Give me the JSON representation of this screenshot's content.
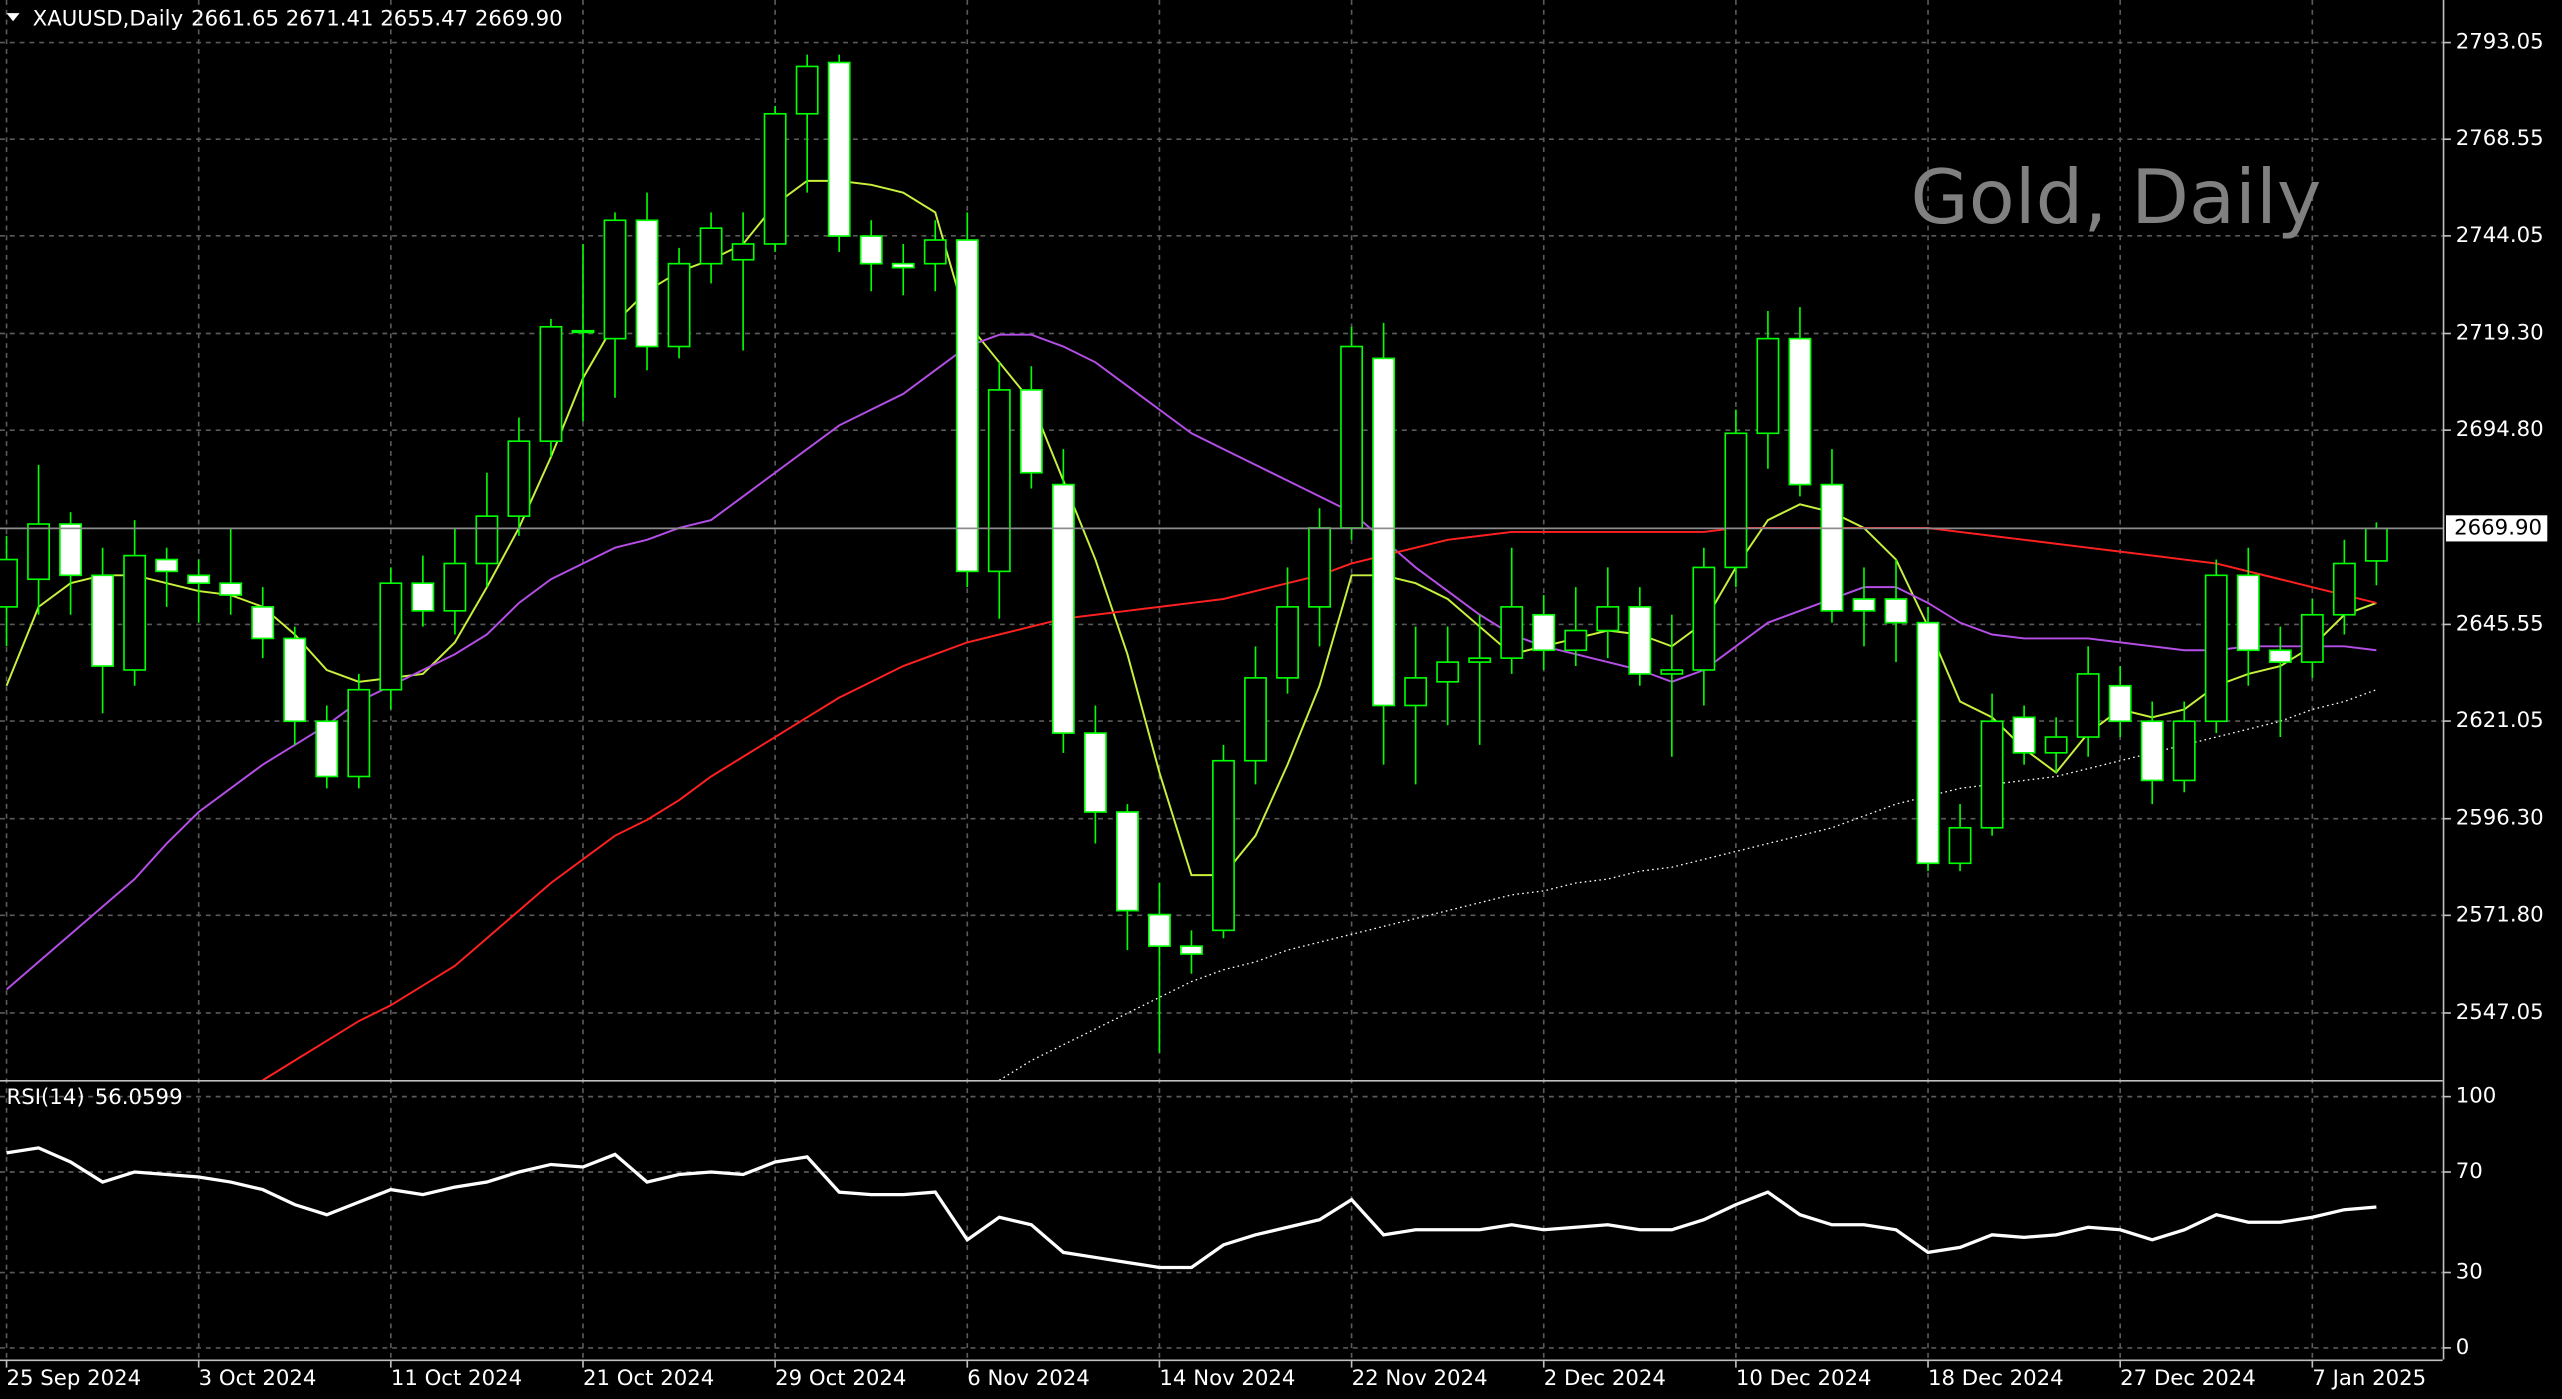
{
  "chart_data": [
    {
      "type": "candlestick",
      "symbol": "XAUUSD,Daily",
      "header_values": "2661.65 2671.41 2655.47 2669.90",
      "watermark": "Gold, Daily",
      "categories": [
        "25 Sep 2024",
        null,
        null,
        null,
        null,
        null,
        "3 Oct 2024",
        null,
        null,
        null,
        null,
        null,
        "11 Oct 2024",
        null,
        null,
        null,
        null,
        null,
        "21 Oct 2024",
        null,
        null,
        null,
        null,
        null,
        "29 Oct 2024",
        null,
        null,
        null,
        null,
        null,
        "6 Nov 2024",
        null,
        null,
        null,
        null,
        null,
        "14 Nov 2024",
        null,
        null,
        null,
        null,
        null,
        "22 Nov 2024",
        null,
        null,
        null,
        null,
        null,
        "2 Dec 2024",
        null,
        null,
        null,
        null,
        null,
        "10 Dec 2024",
        null,
        null,
        null,
        null,
        null,
        "18 Dec 2024",
        null,
        null,
        null,
        null,
        null,
        "27 Dec 2024",
        null,
        null,
        null,
        null,
        null,
        "7 Jan 2025",
        null,
        null
      ],
      "open": [
        2650,
        2657,
        2671,
        2658,
        2634,
        2662,
        2658,
        2656,
        2650,
        2642,
        2621,
        2607,
        2629,
        2656,
        2649,
        2661,
        2673,
        2692,
        2720,
        2718,
        2748,
        2716,
        2737,
        2738,
        2742,
        2775,
        2788,
        2744,
        2737,
        2737,
        2743,
        2659,
        2705,
        2681,
        2618,
        2598,
        2572,
        2564,
        2568,
        2611,
        2632,
        2650,
        2670,
        2713,
        2625,
        2631,
        2636,
        2637,
        2648,
        2639,
        2644,
        2650,
        2633,
        2634,
        2660,
        2694,
        2718,
        2681,
        2652,
        2652,
        2646,
        2585,
        2594,
        2622,
        2613,
        2617,
        2630,
        2621,
        2606,
        2621,
        2658,
        2639,
        2636,
        2648,
        2661.65
      ],
      "high": [
        2668,
        2686,
        2674,
        2665,
        2672,
        2665,
        2662,
        2670,
        2655,
        2645,
        2625,
        2633,
        2660,
        2663,
        2670,
        2684,
        2698,
        2723,
        2742,
        2750,
        2755,
        2741,
        2750,
        2750,
        2777,
        2790,
        2790,
        2748,
        2742,
        2748,
        2750,
        2712,
        2711,
        2690,
        2625,
        2600,
        2580,
        2568,
        2615,
        2640,
        2660,
        2675,
        2721,
        2722,
        2645,
        2645,
        2648,
        2665,
        2653,
        2655,
        2660,
        2655,
        2648,
        2665,
        2700,
        2725,
        2726,
        2690,
        2660,
        2662,
        2650,
        2600,
        2628,
        2625,
        2622,
        2640,
        2635,
        2626,
        2626,
        2662,
        2665,
        2645,
        2652,
        2667,
        2671.41
      ],
      "low": [
        2640,
        2648,
        2648,
        2623,
        2630,
        2650,
        2646,
        2648,
        2637,
        2615,
        2604,
        2604,
        2624,
        2645,
        2643,
        2655,
        2668,
        2688,
        2697,
        2703,
        2710,
        2713,
        2732,
        2715,
        2740,
        2755,
        2740,
        2730,
        2729,
        2730,
        2655,
        2647,
        2680,
        2613,
        2590,
        2563,
        2537,
        2557,
        2566,
        2605,
        2628,
        2640,
        2667,
        2610,
        2605,
        2620,
        2615,
        2633,
        2634,
        2635,
        2637,
        2630,
        2612,
        2625,
        2655,
        2685,
        2678,
        2646,
        2640,
        2636,
        2583,
        2583,
        2592,
        2610,
        2608,
        2612,
        2617,
        2600,
        2603,
        2618,
        2630,
        2617,
        2632,
        2643,
        2655.47
      ],
      "close": [
        2662,
        2671,
        2658,
        2635,
        2663,
        2659,
        2656,
        2653,
        2642,
        2621,
        2607,
        2629,
        2656,
        2649,
        2661,
        2673,
        2692,
        2721,
        2720,
        2748,
        2716,
        2737,
        2746,
        2742,
        2775,
        2787,
        2744,
        2737,
        2736,
        2743,
        2659,
        2705,
        2684,
        2618,
        2598,
        2573,
        2564,
        2562,
        2611,
        2632,
        2650,
        2670,
        2716,
        2625,
        2632,
        2636,
        2637,
        2650,
        2639,
        2644,
        2650,
        2633,
        2634,
        2660,
        2694,
        2718,
        2681,
        2649,
        2649,
        2646,
        2585,
        2594,
        2621,
        2613,
        2617,
        2633,
        2621,
        2606,
        2621,
        2658,
        2639,
        2636,
        2648,
        2661,
        2669.9
      ],
      "up_color": "#00ff00",
      "down_color": "#ffffff",
      "series": [
        {
          "color": "#c8f03c",
          "style": "solid",
          "values": [
            2630,
            2650,
            2656,
            2658,
            2658,
            2656,
            2654,
            2653,
            2650,
            2643,
            2634,
            2631,
            2632,
            2633,
            2641,
            2655,
            2670,
            2688,
            2708,
            2722,
            2730,
            2735,
            2738,
            2742,
            2752,
            2758,
            2758,
            2757,
            2755,
            2750,
            2722,
            2712,
            2702,
            2682,
            2662,
            2638,
            2608,
            2582,
            2582,
            2592,
            2610,
            2630,
            2658,
            2658,
            2656,
            2652,
            2645,
            2638,
            2640,
            2642,
            2644,
            2643,
            2640,
            2646,
            2660,
            2672,
            2676,
            2674,
            2670,
            2662,
            2645,
            2626,
            2622,
            2614,
            2608,
            2618,
            2624,
            2622,
            2624,
            2630,
            2633,
            2635,
            2640,
            2648,
            2651
          ]
        },
        {
          "color": "#b44ee6",
          "style": "solid",
          "values": [
            2553,
            2560,
            2567,
            2574,
            2581,
            2590,
            2598,
            2604,
            2610,
            2615,
            2620,
            2626,
            2630,
            2634,
            2638,
            2643,
            2651,
            2657,
            2661,
            2665,
            2667,
            2670,
            2672,
            2678,
            2684,
            2690,
            2696,
            2700,
            2704,
            2710,
            2716,
            2719,
            2719,
            2716,
            2712,
            2706,
            2700,
            2694,
            2690,
            2686,
            2682,
            2678,
            2674,
            2667,
            2660,
            2654,
            2648,
            2643,
            2640,
            2638,
            2636,
            2634,
            2631,
            2634,
            2640,
            2646,
            2649,
            2652,
            2655,
            2655,
            2651,
            2646,
            2643,
            2642,
            2642,
            2642,
            2641,
            2640,
            2639,
            2639,
            2640,
            2640,
            2640,
            2640,
            2639
          ]
        },
        {
          "color": "#ff2020",
          "style": "solid",
          "values": [
            null,
            null,
            null,
            null,
            null,
            null,
            null,
            null,
            2530,
            2535,
            2540,
            2545,
            2549,
            2554,
            2559,
            2566,
            2573,
            2580,
            2586,
            2592,
            2596,
            2601,
            2607,
            2612,
            2617,
            2622,
            2627,
            2631,
            2635,
            2638,
            2641,
            2643,
            2645,
            2647,
            2648,
            2649,
            2650,
            2651,
            2652,
            2654,
            2656,
            2658,
            2661,
            2663,
            2665,
            2667,
            2668,
            2669,
            2669,
            2669,
            2669,
            2669,
            2669,
            2669,
            2670,
            2670,
            2670,
            2670,
            2670,
            2670,
            2670,
            2669,
            2668,
            2667,
            2666,
            2665,
            2664,
            2663,
            2662,
            2661,
            2659,
            2657,
            2655,
            2653,
            2651
          ]
        },
        {
          "color": "#ffffff",
          "style": "dotted",
          "values": [
            null,
            null,
            null,
            null,
            null,
            null,
            null,
            null,
            null,
            null,
            null,
            null,
            null,
            null,
            null,
            null,
            null,
            null,
            null,
            null,
            null,
            null,
            null,
            null,
            null,
            null,
            null,
            null,
            null,
            null,
            null,
            2530,
            2535,
            2539,
            2543,
            2547,
            2551,
            2555,
            2558,
            2560,
            2563,
            2565,
            2567,
            2569,
            2571,
            2573,
            2575,
            2577,
            2578,
            2580,
            2581,
            2583,
            2584,
            2586,
            2588,
            2590,
            2592,
            2594,
            2597,
            2600,
            2602,
            2604,
            2605,
            2606,
            2607,
            2609,
            2611,
            2613,
            2615,
            2617,
            2619,
            2621,
            2624,
            2626,
            2629
          ]
        }
      ],
      "last_price": {
        "value": 2669.9,
        "label": "2669.90"
      },
      "ylim": [
        2530.05,
        2803.84
      ],
      "yticks": [
        2793.05,
        2768.55,
        2744.05,
        {
          "value": 2719.3,
          "label": "2719.30"
        },
        {
          "value": 2694.8,
          "label": "2694.80"
        },
        2645.55,
        2621.05,
        {
          "value": 2596.3,
          "label": "2596.30"
        },
        {
          "value": 2571.8,
          "label": "2571.80"
        },
        2547.05
      ],
      "grid": true
    },
    {
      "type": "line",
      "label": "RSI(14)",
      "label_value": 56.0599,
      "color": "#ffffff",
      "values": [
        77.6,
        79.6,
        74,
        66,
        70,
        69,
        68,
        66,
        63,
        57,
        53,
        58,
        63,
        61,
        64,
        66,
        70,
        73,
        72,
        77,
        66,
        69,
        70,
        69,
        74,
        76,
        62,
        61,
        61,
        62,
        43,
        52,
        49,
        38,
        36,
        34,
        32,
        32,
        41,
        45,
        48,
        51,
        59,
        45,
        47,
        47,
        47,
        49,
        47,
        48,
        49,
        47,
        47,
        51,
        57,
        62,
        53,
        49,
        49,
        47,
        38,
        40,
        45,
        44,
        45,
        48,
        47,
        43,
        47,
        53,
        50,
        50,
        52,
        55,
        56.0599
      ],
      "ylim": [
        -4.6,
        105.3
      ],
      "yticks": [
        100,
        70,
        30,
        0
      ]
    }
  ]
}
